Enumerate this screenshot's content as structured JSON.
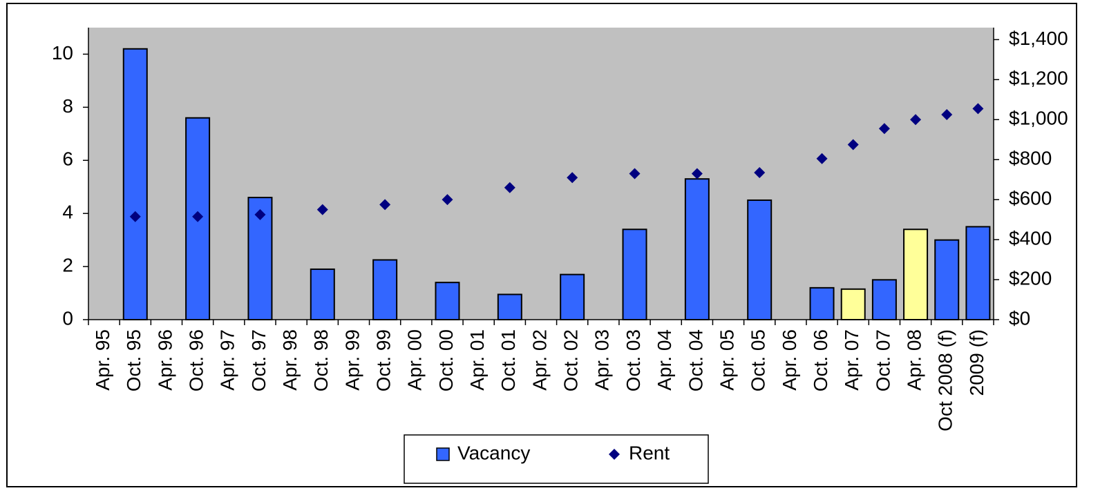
{
  "chart_data": {
    "type": "bar",
    "categories": [
      "Apr. 95",
      "Oct. 95",
      "Apr. 96",
      "Oct. 96",
      "Apr. 97",
      "Oct. 97",
      "Apr. 98",
      "Oct. 98",
      "Apr. 99",
      "Oct. 99",
      "Apr. 00",
      "Oct. 00",
      "Apr. 01",
      "Oct. 01",
      "Apr. 02",
      "Oct. 02",
      "Apr. 03",
      "Oct. 03",
      "Apr. 04",
      "Oct. 04",
      "Apr. 05",
      "Oct. 05",
      "Apr. 06",
      "Oct. 06",
      "Apr. 07",
      "Oct. 07",
      "Apr. 08",
      "Oct 2008 (f)",
      "2009 (f)"
    ],
    "series": [
      {
        "name": "Vacancy",
        "type": "bar",
        "color": "#3366ff",
        "values": [
          null,
          10.2,
          null,
          7.6,
          null,
          4.6,
          null,
          1.9,
          null,
          2.25,
          null,
          1.4,
          null,
          0.95,
          null,
          1.7,
          null,
          3.4,
          null,
          5.3,
          null,
          4.5,
          null,
          1.2,
          1.15,
          1.5,
          3.4,
          3.0,
          3.5
        ],
        "colors": [
          null,
          "#3366ff",
          null,
          "#3366ff",
          null,
          "#3366ff",
          null,
          "#3366ff",
          null,
          "#3366ff",
          null,
          "#3366ff",
          null,
          "#3366ff",
          null,
          "#3366ff",
          null,
          "#3366ff",
          null,
          "#3366ff",
          null,
          "#3366ff",
          null,
          "#3366ff",
          "#ffff99",
          "#3366ff",
          "#ffff99",
          "#3366ff",
          "#3366ff"
        ]
      },
      {
        "name": "Rent",
        "type": "scatter",
        "axis": "y2",
        "color": "#000080",
        "values": [
          null,
          515,
          null,
          515,
          null,
          525,
          null,
          550,
          null,
          575,
          null,
          600,
          null,
          660,
          null,
          710,
          null,
          730,
          null,
          730,
          null,
          735,
          null,
          805,
          875,
          955,
          1000,
          1025,
          1055
        ]
      }
    ],
    "ylim": [
      0,
      11
    ],
    "yticks": [
      0,
      2,
      4,
      6,
      8,
      10
    ],
    "y2lim": [
      0,
      1460
    ],
    "y2ticks": [
      {
        "value": 0,
        "label": "$0"
      },
      {
        "value": 200,
        "label": "$200"
      },
      {
        "value": 400,
        "label": "$400"
      },
      {
        "value": 600,
        "label": "$600"
      },
      {
        "value": 800,
        "label": "$800"
      },
      {
        "value": 1000,
        "label": "$1,000"
      },
      {
        "value": 1200,
        "label": "$1,200"
      },
      {
        "value": 1400,
        "label": "$1,400"
      }
    ],
    "legend": "bottom"
  }
}
